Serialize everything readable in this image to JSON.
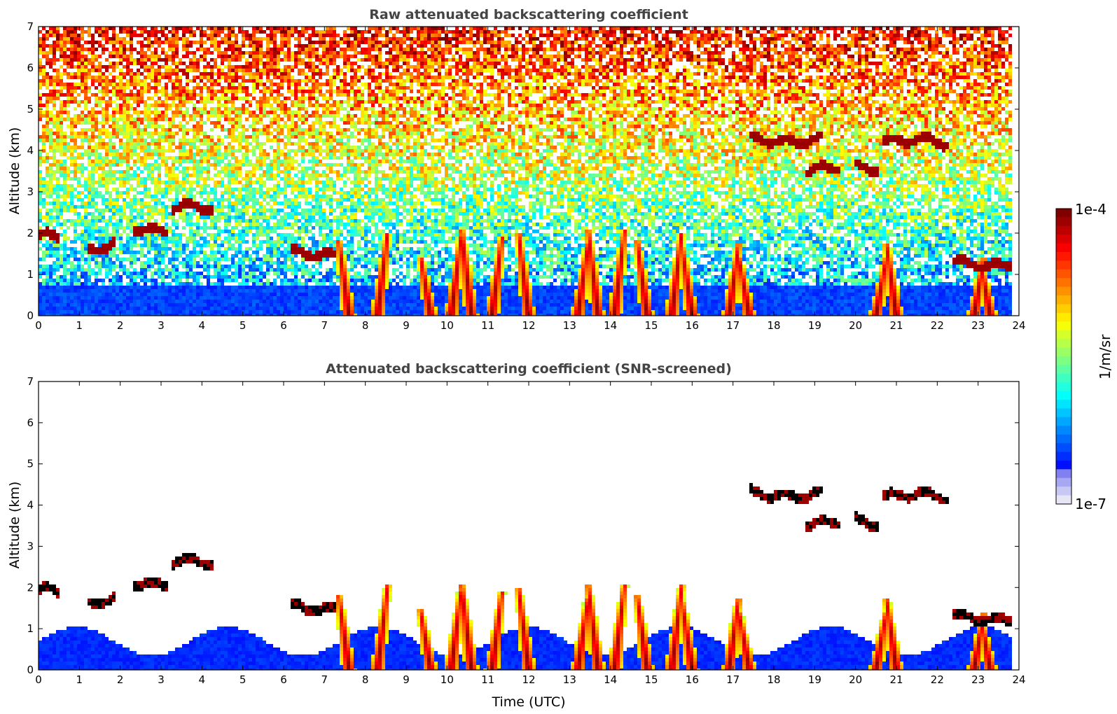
{
  "chart_data": [
    {
      "type": "heatmap",
      "title": "Raw attenuated backscattering coefficient",
      "xlabel": "",
      "ylabel": "Altitude (km)",
      "xlim": [
        0,
        24
      ],
      "ylim": [
        0,
        7
      ],
      "xticks": [
        "0",
        "1",
        "2",
        "3",
        "4",
        "5",
        "6",
        "7",
        "8",
        "9",
        "10",
        "11",
        "12",
        "13",
        "14",
        "15",
        "16",
        "17",
        "18",
        "19",
        "20",
        "21",
        "22",
        "23",
        "24"
      ],
      "yticks": [
        "0",
        "1",
        "2",
        "3",
        "4",
        "5",
        "6",
        "7"
      ],
      "data_end_hour": 23.8,
      "colormap": "jet",
      "scale": "log",
      "features": {
        "boundary_layer_top_km": 0.7,
        "cloud_layers": [
          {
            "t0": 0.0,
            "t1": 0.5,
            "alt_km": 1.9
          },
          {
            "t0": 1.2,
            "t1": 1.9,
            "alt_km": 1.65
          },
          {
            "t0": 2.3,
            "t1": 3.2,
            "alt_km": 2.1
          },
          {
            "t0": 3.3,
            "t1": 4.3,
            "alt_km": 2.6
          },
          {
            "t0": 6.2,
            "t1": 7.3,
            "alt_km": 1.5
          },
          {
            "t0": 17.4,
            "t1": 19.2,
            "alt_km": 4.25
          },
          {
            "t0": 18.8,
            "t1": 19.6,
            "alt_km": 3.55
          },
          {
            "t0": 20.0,
            "t1": 20.6,
            "alt_km": 3.6
          },
          {
            "t0": 20.7,
            "t1": 22.3,
            "alt_km": 4.22
          },
          {
            "t0": 22.4,
            "t1": 23.8,
            "alt_km": 1.25
          }
        ],
        "precipitation_shafts_hours": [
          7.6,
          8.3,
          9.6,
          10.1,
          10.6,
          11.1,
          12.0,
          13.2,
          13.7,
          14.1,
          14.9,
          15.5,
          16.0,
          16.9,
          17.4,
          20.5,
          21.0,
          22.9,
          23.3
        ]
      }
    },
    {
      "type": "heatmap",
      "title": "Attenuated backscattering coefficient (SNR-screened)",
      "xlabel": "Time (UTC)",
      "ylabel": "Altitude (km)",
      "xlim": [
        0,
        24
      ],
      "ylim": [
        0,
        7
      ],
      "xticks": [
        "0",
        "1",
        "2",
        "3",
        "4",
        "5",
        "6",
        "7",
        "8",
        "9",
        "10",
        "11",
        "12",
        "13",
        "14",
        "15",
        "16",
        "17",
        "18",
        "19",
        "20",
        "21",
        "22",
        "23",
        "24"
      ],
      "yticks": [
        "0",
        "1",
        "2",
        "3",
        "4",
        "5",
        "6",
        "7"
      ],
      "colormap": "jet",
      "scale": "log"
    }
  ],
  "colorbar": {
    "label": "1/m/sr",
    "max_label": "1e-4",
    "min_label": "1e-7",
    "min_value": 1e-07,
    "max_value": 0.0001,
    "colors": [
      "#e6e6f7",
      "#b7b7f4",
      "#7777f0",
      "#0000ff",
      "#0080ff",
      "#00ffff",
      "#80ff80",
      "#ffff00",
      "#ff8000",
      "#ff0000",
      "#800000"
    ]
  }
}
